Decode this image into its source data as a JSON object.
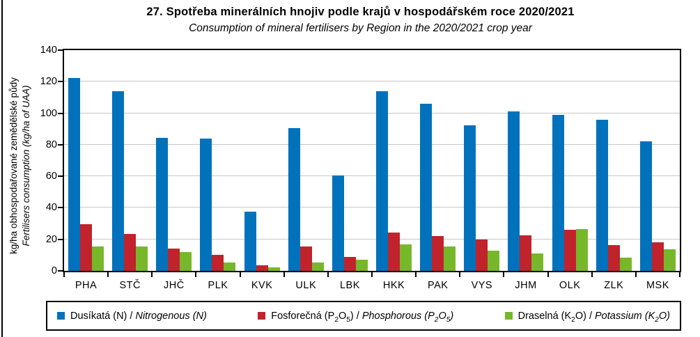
{
  "title": "27. Spotřeba minerálních hnojiv podle krajů v hospodářském roce 2020/2021",
  "subtitle": "Consumption of mineral fertilisers by Region in the 2020/2021 crop year",
  "chart_data": {
    "type": "bar",
    "title": "27. Spotřeba minerálních hnojiv podle krajů v hospodářském roce 2020/2021",
    "subtitle": "Consumption of mineral fertilisers by Region in the 2020/2021 crop year",
    "ylabel_line1": "kg/ha obhospodařované zemědělské půdy",
    "ylabel_line2": "Fertilisers consumption (kg/ha of UAA)",
    "xlabel": "",
    "ylim": [
      0,
      140
    ],
    "yticks": [
      0,
      20,
      40,
      60,
      80,
      100,
      120,
      140
    ],
    "grid": true,
    "legend_position": "bottom",
    "categories": [
      "PHA",
      "STČ",
      "JHČ",
      "PLK",
      "KVK",
      "ULK",
      "LBK",
      "HKK",
      "PAK",
      "VYS",
      "JHM",
      "OLK",
      "ZLK",
      "MSK"
    ],
    "series": [
      {
        "name_cz": "Dusíkatá (N)",
        "name_en": "Nitrogenous (N)",
        "color": "#0072BC",
        "values": [
          122.5,
          114,
          84.5,
          84,
          37.5,
          90.5,
          60.5,
          114,
          106,
          92.5,
          101,
          99,
          96,
          82
        ]
      },
      {
        "name_cz": "Fosforečná (P_2O_5)",
        "name_en": "Phosphorous (P_2O_5)",
        "color": "#C0232C",
        "values": [
          29.5,
          23.5,
          14,
          10,
          3.5,
          15.5,
          9,
          24.5,
          22,
          20,
          22.5,
          26,
          16.5,
          18
        ]
      },
      {
        "name_cz": "Draselná (K_2O)",
        "name_en": "Potassium (K_2O)",
        "color": "#76B82A",
        "values": [
          15.5,
          15.5,
          12,
          5.5,
          2,
          5.5,
          7,
          17,
          15.5,
          13,
          11,
          26.5,
          8.5,
          13.5
        ]
      }
    ]
  },
  "colors": {
    "bar_nitrogenous": "#0072BC",
    "bar_phosphorous": "#C0232C",
    "bar_potassium": "#76B82A",
    "gridline": "#C6C6C6",
    "axis": "#000000"
  }
}
